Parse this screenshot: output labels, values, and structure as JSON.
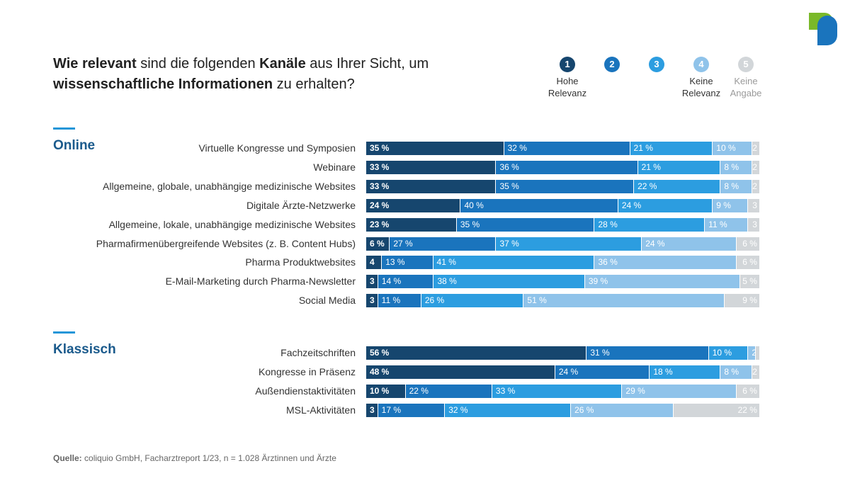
{
  "title": {
    "parts": [
      {
        "text": "Wie relevant",
        "bold": true
      },
      {
        "text": " sind die folgenden ",
        "bold": false
      },
      {
        "text": "Kanäle",
        "bold": true
      },
      {
        "text": " aus Ihrer Sicht, um ",
        "bold": false
      },
      {
        "br": true
      },
      {
        "text": "wissenschaftliche Informationen",
        "bold": true
      },
      {
        "text": " zu erhalten?",
        "bold": false
      }
    ]
  },
  "legend": [
    {
      "num": "1",
      "label": "Hohe Relevanz",
      "color": "#16466e",
      "text_color": "#333333"
    },
    {
      "num": "2",
      "label": "",
      "color": "#1a74bd",
      "text_color": "#333333"
    },
    {
      "num": "3",
      "label": "",
      "color": "#2c9de0",
      "text_color": "#333333"
    },
    {
      "num": "4",
      "label": "Keine Relevanz",
      "color": "#8fc3ea",
      "text_color": "#333333"
    },
    {
      "num": "5",
      "label": "Keine Angabe",
      "color": "#d2d6d9",
      "text_color": "#9a9a9a"
    }
  ],
  "colors": [
    "#16466e",
    "#1a74bd",
    "#2c9de0",
    "#8fc3ea",
    "#d2d6d9"
  ],
  "chart_data": {
    "type": "bar",
    "orientation": "horizontal-stacked-100",
    "series_names": [
      "1",
      "2",
      "3",
      "4",
      "5"
    ],
    "groups": [
      {
        "name": "Online",
        "rows": [
          {
            "label": "Virtuelle Kongresse und Symposien",
            "values": [
              35,
              32,
              21,
              10,
              2
            ],
            "texts": [
              "35 %",
              "32 %",
              "21 %",
              "10 %",
              "2"
            ]
          },
          {
            "label": "Webinare",
            "values": [
              33,
              36,
              21,
              8,
              2
            ],
            "texts": [
              "33 %",
              "36 %",
              "21 %",
              "8 %",
              "2"
            ]
          },
          {
            "label": "Allgemeine, globale, unabhängige medizinische Websites",
            "values": [
              33,
              35,
              22,
              8,
              2
            ],
            "texts": [
              "33 %",
              "35 %",
              "22 %",
              "8 %",
              "2"
            ]
          },
          {
            "label": "Digitale Ärzte-Netzwerke",
            "values": [
              24,
              40,
              24,
              9,
              3
            ],
            "texts": [
              "24 %",
              "40 %",
              "24 %",
              "9 %",
              "3"
            ]
          },
          {
            "label": "Allgemeine, lokale, unabhängige medizinische Websites",
            "values": [
              23,
              35,
              28,
              11,
              3
            ],
            "texts": [
              "23 %",
              "35 %",
              "28 %",
              "11 %",
              "3"
            ]
          },
          {
            "label": "Pharmafirmenübergreifende Websites (z. B. Content Hubs)",
            "values": [
              6,
              27,
              37,
              24,
              6
            ],
            "texts": [
              "6 %",
              "27 %",
              "37 %",
              "24 %",
              "6 %"
            ]
          },
          {
            "label": "Pharma Produktwebsites",
            "values": [
              4,
              13,
              41,
              36,
              6
            ],
            "texts": [
              "4",
              "13 %",
              "41 %",
              "36 %",
              "6 %"
            ]
          },
          {
            "label": "E-Mail-Marketing durch Pharma-Newsletter",
            "values": [
              3,
              14,
              38,
              39,
              5
            ],
            "texts": [
              "3",
              "14 %",
              "38 %",
              "39 %",
              "5 %"
            ]
          },
          {
            "label": "Social Media",
            "values": [
              3,
              11,
              26,
              51,
              9
            ],
            "texts": [
              "3",
              "11 %",
              "26 %",
              "51 %",
              "9 %"
            ]
          }
        ]
      },
      {
        "name": "Klassisch",
        "rows": [
          {
            "label": "Fachzeitschriften",
            "values": [
              56,
              31,
              10,
              2,
              1
            ],
            "texts": [
              "56 %",
              "31 %",
              "10 %",
              "2",
              ""
            ]
          },
          {
            "label": "Kongresse in Präsenz",
            "values": [
              48,
              24,
              18,
              8,
              2
            ],
            "texts": [
              "48 %",
              "24 %",
              "18 %",
              "8 %",
              "2"
            ]
          },
          {
            "label": "Außendienstaktivitäten",
            "values": [
              10,
              22,
              33,
              29,
              6
            ],
            "texts": [
              "10 %",
              "22 %",
              "33 %",
              "29 %",
              "6 %"
            ]
          },
          {
            "label": "MSL-Aktivitäten",
            "values": [
              3,
              17,
              32,
              26,
              22
            ],
            "texts": [
              "3",
              "17 %",
              "32 %",
              "26 %",
              "22 %"
            ]
          }
        ]
      }
    ]
  },
  "source": {
    "label": "Quelle:",
    "text": " coliquio GmbH, Facharztreport 1/23, n = 1.028 Ärztinnen und Ärzte"
  }
}
